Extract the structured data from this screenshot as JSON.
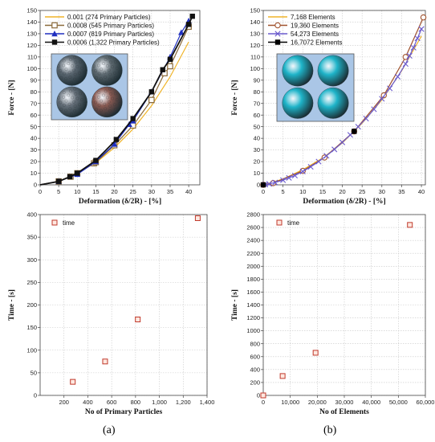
{
  "panel_labels": {
    "a": "(a)",
    "b": "(b)"
  },
  "chart_data": [
    {
      "type": "line",
      "panel": "a-top",
      "xlabel": "Deformation (δ/2R) - [%]",
      "ylabel": "Force - [N]",
      "xlim": [
        0,
        43
      ],
      "ylim": [
        0,
        150
      ],
      "xticks": [
        0,
        5,
        10,
        15,
        20,
        25,
        30,
        35,
        40
      ],
      "yticks": [
        0,
        10,
        20,
        30,
        40,
        50,
        60,
        70,
        80,
        90,
        100,
        110,
        120,
        130,
        140,
        150
      ],
      "grid": true,
      "legend_position": "top-left",
      "series": [
        {
          "name": "0.001",
          "note": "(274 Primary Particles)",
          "color": "#f0b429",
          "marker": "none",
          "x": [
            0,
            5,
            10,
            15,
            20,
            25,
            30,
            35,
            40
          ],
          "y": [
            0,
            3,
            10,
            19,
            32,
            48,
            68,
            93,
            123
          ]
        },
        {
          "name": "0.0008",
          "note": "(545 Primary Particles)",
          "color": "#8a6a3a",
          "marker": "square-open",
          "x": [
            0,
            5,
            8.2,
            10,
            14.5,
            15,
            20,
            25,
            30,
            33.5,
            35,
            40
          ],
          "y": [
            0,
            3,
            7,
            10,
            18.5,
            19.5,
            34,
            51,
            73,
            96,
            102,
            136
          ]
        },
        {
          "name": "0.0007",
          "note": "(819 Primary Particles)",
          "color": "#1f2fbf",
          "marker": "triangle",
          "x": [
            0,
            5,
            10,
            15,
            20,
            24,
            25,
            30,
            35,
            38,
            40
          ],
          "y": [
            0,
            3,
            9,
            20,
            35,
            52,
            55,
            80,
            110,
            131,
            141
          ]
        },
        {
          "name": "0.0006",
          "note": "(1,322 Primary Particles)",
          "color": "#111111",
          "marker": "square",
          "x": [
            0,
            5,
            8,
            10,
            15,
            20.5,
            25,
            30,
            33,
            35,
            40,
            41
          ],
          "y": [
            0,
            3,
            7,
            10,
            21,
            39,
            57,
            80,
            99,
            108,
            138,
            145
          ]
        }
      ]
    },
    {
      "type": "line",
      "panel": "b-top",
      "xlabel": "Deformation (δ/2R) - [%]",
      "ylabel": "Force - [N]",
      "xlim": [
        0,
        41
      ],
      "ylim": [
        0,
        150
      ],
      "xticks": [
        0,
        5,
        10,
        15,
        20,
        25,
        30,
        35,
        40
      ],
      "yticks": [
        0,
        10,
        20,
        30,
        40,
        50,
        60,
        70,
        80,
        90,
        100,
        110,
        120,
        130,
        140,
        150
      ],
      "grid": true,
      "legend_position": "top-left",
      "series": [
        {
          "name": "7,168 Elements",
          "color": "#f0b429",
          "marker": "none",
          "x": [
            0,
            5,
            10,
            15,
            20,
            25,
            30,
            35,
            40
          ],
          "y": [
            0,
            5,
            13,
            23,
            36,
            53,
            73,
            98,
            128
          ]
        },
        {
          "name": "19,360 Elements",
          "color": "#a0522d",
          "marker": "circle-open",
          "x": [
            0,
            2.5,
            10,
            15.5,
            23,
            30.5,
            36,
            40.5
          ],
          "y": [
            0,
            1.5,
            12,
            23.5,
            46,
            77,
            110,
            144
          ]
        },
        {
          "name": "54,273 Elements",
          "color": "#6a5acd",
          "marker": "cross",
          "x": [
            0.5,
            1.5,
            3,
            5,
            6.5,
            8,
            10,
            12,
            14,
            16,
            18,
            20,
            22,
            24,
            26,
            28,
            30,
            32,
            34,
            36,
            37,
            38,
            39,
            40
          ],
          "y": [
            0.2,
            0.8,
            2,
            4,
            6,
            8,
            11.5,
            15.5,
            20,
            25,
            30.5,
            36.5,
            43,
            50,
            57,
            65,
            74,
            83,
            93,
            104,
            111,
            118,
            126,
            134
          ]
        },
        {
          "name": "16,7072 Elements",
          "color": "#000000",
          "marker": "square",
          "x": [
            0,
            23
          ],
          "y": [
            0,
            46
          ]
        }
      ]
    },
    {
      "type": "scatter",
      "panel": "a-bottom",
      "xlabel": "No of Primary Particles",
      "ylabel": "Time - [s]",
      "xlim": [
        0,
        1400
      ],
      "ylim": [
        0,
        400
      ],
      "xticks": [
        200,
        400,
        600,
        800,
        1000,
        1200,
        1400
      ],
      "xticklabels": [
        "200",
        "400",
        "600",
        "800",
        "1,000",
        "1,200",
        "1,400"
      ],
      "yticks": [
        0,
        50,
        100,
        150,
        200,
        250,
        300,
        350,
        400
      ],
      "grid": true,
      "legend_position": "top-left",
      "series": [
        {
          "name": "time",
          "color": "#c0392b",
          "x": [
            274,
            545,
            819,
            1322
          ],
          "y": [
            30,
            75,
            168,
            392
          ]
        }
      ]
    },
    {
      "type": "scatter",
      "panel": "b-bottom",
      "xlabel": "No of Elements",
      "ylabel": "Time - [s]",
      "xlim": [
        0,
        60000
      ],
      "ylim": [
        0,
        2800
      ],
      "xticks": [
        0,
        10000,
        20000,
        30000,
        40000,
        50000,
        60000
      ],
      "xticklabels": [
        "0",
        "10,000",
        "20,000",
        "30,000",
        "40,000",
        "50,000",
        "60,000"
      ],
      "yticks": [
        0,
        200,
        400,
        600,
        800,
        1000,
        1200,
        1400,
        1600,
        1800,
        2000,
        2200,
        2400,
        2600,
        2800
      ],
      "grid": true,
      "legend_position": "top-left",
      "series": [
        {
          "name": "time",
          "color": "#c0392b",
          "x": [
            0,
            7168,
            19360,
            54273
          ],
          "y": [
            0,
            300,
            660,
            2640
          ]
        }
      ]
    }
  ],
  "insets": [
    {
      "panel": "a-top",
      "content": "four particle-agglomerate spheres",
      "colors": [
        "#5a6670",
        "#5f6b72",
        "#66707a",
        "#8a5a52"
      ]
    },
    {
      "panel": "b-top",
      "content": "four cyan meshed spheres",
      "colors": [
        "#1fb4c9",
        "#1fb4c9",
        "#1fb4c9",
        "#1fb4c9"
      ]
    }
  ],
  "chart_style": {
    "background": "#ffffff",
    "inset_background": "#aac6e6"
  }
}
